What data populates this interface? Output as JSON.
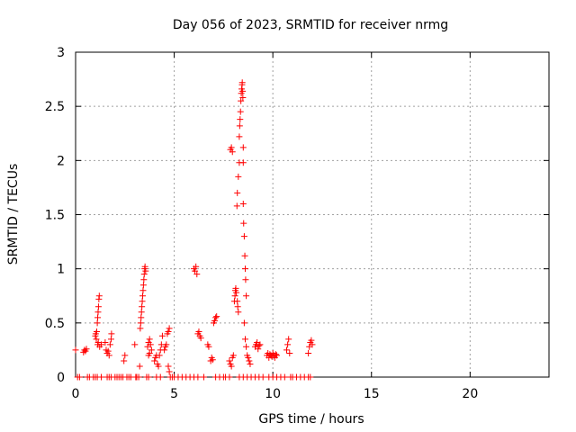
{
  "chart_data": {
    "type": "scatter",
    "title": "Day 056 of 2023, SRMTID for receiver nrmg",
    "xlabel": "GPS time / hours",
    "ylabel": "SRMTID / TECUs",
    "xlim": [
      0,
      24
    ],
    "ylim": [
      0,
      3
    ],
    "xticks": [
      0,
      5,
      10,
      15,
      20
    ],
    "yticks": [
      0,
      0.5,
      1,
      1.5,
      2,
      2.5,
      3
    ],
    "xtick_labels": [
      "0",
      "5",
      "10",
      "15",
      "20"
    ],
    "ytick_labels": [
      "0",
      "0.5",
      "1",
      "1.5",
      "2",
      "2.5",
      "3"
    ],
    "grid": true,
    "marker": "+",
    "color": "#ff0000",
    "series": [
      {
        "name": "SRMTID",
        "points": [
          [
            0.0,
            0.25
          ],
          [
            0.1,
            0.0
          ],
          [
            0.2,
            0.0
          ],
          [
            0.4,
            0.23
          ],
          [
            0.45,
            0.25
          ],
          [
            0.5,
            0.24
          ],
          [
            0.55,
            0.26
          ],
          [
            0.6,
            0.0
          ],
          [
            0.7,
            0.0
          ],
          [
            0.9,
            0.0
          ],
          [
            1.0,
            0.38
          ],
          [
            1.02,
            0.4
          ],
          [
            1.05,
            0.35
          ],
          [
            1.07,
            0.42
          ],
          [
            1.1,
            0.5
          ],
          [
            1.12,
            0.55
          ],
          [
            1.14,
            0.6
          ],
          [
            1.16,
            0.65
          ],
          [
            1.18,
            0.72
          ],
          [
            1.2,
            0.75
          ],
          [
            1.12,
            0.3
          ],
          [
            1.15,
            0.32
          ],
          [
            1.22,
            0.28
          ],
          [
            1.3,
            0.3
          ],
          [
            1.0,
            0.0
          ],
          [
            1.1,
            0.0
          ],
          [
            1.3,
            0.0
          ],
          [
            1.5,
            0.32
          ],
          [
            1.55,
            0.25
          ],
          [
            1.6,
            0.22
          ],
          [
            1.65,
            0.24
          ],
          [
            1.7,
            0.2
          ],
          [
            1.75,
            0.3
          ],
          [
            1.8,
            0.35
          ],
          [
            1.82,
            0.4
          ],
          [
            1.6,
            0.0
          ],
          [
            1.7,
            0.0
          ],
          [
            1.8,
            0.0
          ],
          [
            2.0,
            0.0
          ],
          [
            2.1,
            0.0
          ],
          [
            2.2,
            0.0
          ],
          [
            2.3,
            0.0
          ],
          [
            2.4,
            0.0
          ],
          [
            2.45,
            0.15
          ],
          [
            2.5,
            0.2
          ],
          [
            2.6,
            0.0
          ],
          [
            2.7,
            0.0
          ],
          [
            2.8,
            0.0
          ],
          [
            3.0,
            0.3
          ],
          [
            3.05,
            0.0
          ],
          [
            3.1,
            0.0
          ],
          [
            3.2,
            0.0
          ],
          [
            3.25,
            0.1
          ],
          [
            3.28,
            0.45
          ],
          [
            3.3,
            0.5
          ],
          [
            3.32,
            0.55
          ],
          [
            3.34,
            0.6
          ],
          [
            3.36,
            0.65
          ],
          [
            3.38,
            0.7
          ],
          [
            3.4,
            0.75
          ],
          [
            3.42,
            0.8
          ],
          [
            3.44,
            0.85
          ],
          [
            3.46,
            0.9
          ],
          [
            3.48,
            0.95
          ],
          [
            3.5,
            1.0
          ],
          [
            3.52,
            1.02
          ],
          [
            3.55,
            0.98
          ],
          [
            3.6,
            0.0
          ],
          [
            3.7,
            0.0
          ],
          [
            3.65,
            0.28
          ],
          [
            3.7,
            0.32
          ],
          [
            3.75,
            0.35
          ],
          [
            3.8,
            0.3
          ],
          [
            3.85,
            0.25
          ],
          [
            3.7,
            0.2
          ],
          [
            3.75,
            0.22
          ],
          [
            4.0,
            0.15
          ],
          [
            4.05,
            0.18
          ],
          [
            4.1,
            0.2
          ],
          [
            4.15,
            0.12
          ],
          [
            4.2,
            0.1
          ],
          [
            4.25,
            0.2
          ],
          [
            4.3,
            0.25
          ],
          [
            4.35,
            0.3
          ],
          [
            4.4,
            0.38
          ],
          [
            4.1,
            0.0
          ],
          [
            4.3,
            0.0
          ],
          [
            4.5,
            0.25
          ],
          [
            4.55,
            0.28
          ],
          [
            4.6,
            0.3
          ],
          [
            4.65,
            0.4
          ],
          [
            4.7,
            0.42
          ],
          [
            4.75,
            0.45
          ],
          [
            4.7,
            0.1
          ],
          [
            4.75,
            0.05
          ],
          [
            4.8,
            0.0
          ],
          [
            4.9,
            0.0
          ],
          [
            5.0,
            0.0
          ],
          [
            5.2,
            0.0
          ],
          [
            5.4,
            0.0
          ],
          [
            5.6,
            0.0
          ],
          [
            5.8,
            0.0
          ],
          [
            6.0,
            1.0
          ],
          [
            6.05,
            0.98
          ],
          [
            6.1,
            1.02
          ],
          [
            6.15,
            0.95
          ],
          [
            6.2,
            0.4
          ],
          [
            6.25,
            0.42
          ],
          [
            6.3,
            0.38
          ],
          [
            6.35,
            0.36
          ],
          [
            6.0,
            0.0
          ],
          [
            6.2,
            0.0
          ],
          [
            6.5,
            0.0
          ],
          [
            6.7,
            0.3
          ],
          [
            6.75,
            0.28
          ],
          [
            6.85,
            0.15
          ],
          [
            6.9,
            0.18
          ],
          [
            6.95,
            0.16
          ],
          [
            7.0,
            0.5
          ],
          [
            7.05,
            0.52
          ],
          [
            7.1,
            0.55
          ],
          [
            7.15,
            0.56
          ],
          [
            7.1,
            0.0
          ],
          [
            7.3,
            0.0
          ],
          [
            7.5,
            0.0
          ],
          [
            7.6,
            0.0
          ],
          [
            7.8,
            0.0
          ],
          [
            7.85,
            2.1
          ],
          [
            7.9,
            2.12
          ],
          [
            7.95,
            2.08
          ],
          [
            7.8,
            0.15
          ],
          [
            7.85,
            0.12
          ],
          [
            7.9,
            0.1
          ],
          [
            7.95,
            0.18
          ],
          [
            8.0,
            0.2
          ],
          [
            8.05,
            0.7
          ],
          [
            8.08,
            0.75
          ],
          [
            8.1,
            0.8
          ],
          [
            8.12,
            0.82
          ],
          [
            8.15,
            0.78
          ],
          [
            8.2,
            0.7
          ],
          [
            8.22,
            0.65
          ],
          [
            8.25,
            0.6
          ],
          [
            8.18,
            1.58
          ],
          [
            8.2,
            1.7
          ],
          [
            8.25,
            1.85
          ],
          [
            8.3,
            1.98
          ],
          [
            8.3,
            2.22
          ],
          [
            8.32,
            2.32
          ],
          [
            8.34,
            2.38
          ],
          [
            8.36,
            2.45
          ],
          [
            8.38,
            2.55
          ],
          [
            8.4,
            2.62
          ],
          [
            8.42,
            2.66
          ],
          [
            8.44,
            2.7
          ],
          [
            8.45,
            2.72
          ],
          [
            8.47,
            2.64
          ],
          [
            8.48,
            2.58
          ],
          [
            8.5,
            2.12
          ],
          [
            8.5,
            1.98
          ],
          [
            8.5,
            1.6
          ],
          [
            8.52,
            1.42
          ],
          [
            8.55,
            1.3
          ],
          [
            8.58,
            1.12
          ],
          [
            8.6,
            1.0
          ],
          [
            8.62,
            0.9
          ],
          [
            8.65,
            0.75
          ],
          [
            8.55,
            0.5
          ],
          [
            8.6,
            0.35
          ],
          [
            8.65,
            0.28
          ],
          [
            8.7,
            0.2
          ],
          [
            8.75,
            0.18
          ],
          [
            8.8,
            0.15
          ],
          [
            8.85,
            0.12
          ],
          [
            8.3,
            0.0
          ],
          [
            8.5,
            0.0
          ],
          [
            8.7,
            0.0
          ],
          [
            8.9,
            0.0
          ],
          [
            9.1,
            0.28
          ],
          [
            9.15,
            0.3
          ],
          [
            9.2,
            0.32
          ],
          [
            9.25,
            0.26
          ],
          [
            9.3,
            0.29
          ],
          [
            9.35,
            0.3
          ],
          [
            9.1,
            0.0
          ],
          [
            9.3,
            0.0
          ],
          [
            9.5,
            0.0
          ],
          [
            9.7,
            0.2
          ],
          [
            9.75,
            0.22
          ],
          [
            9.8,
            0.18
          ],
          [
            9.85,
            0.21
          ],
          [
            9.9,
            0.2
          ],
          [
            9.95,
            0.19
          ],
          [
            10.0,
            0.22
          ],
          [
            10.05,
            0.2
          ],
          [
            10.1,
            0.18
          ],
          [
            10.15,
            0.21
          ],
          [
            10.2,
            0.2
          ],
          [
            9.8,
            0.0
          ],
          [
            10.0,
            0.0
          ],
          [
            10.2,
            0.0
          ],
          [
            10.4,
            0.0
          ],
          [
            10.6,
            0.0
          ],
          [
            10.7,
            0.25
          ],
          [
            10.75,
            0.3
          ],
          [
            10.8,
            0.35
          ],
          [
            10.85,
            0.22
          ],
          [
            10.9,
            0.0
          ],
          [
            11.0,
            0.0
          ],
          [
            11.2,
            0.0
          ],
          [
            11.4,
            0.0
          ],
          [
            11.6,
            0.0
          ],
          [
            11.8,
            0.22
          ],
          [
            11.85,
            0.28
          ],
          [
            11.9,
            0.32
          ],
          [
            11.95,
            0.34
          ],
          [
            12.0,
            0.3
          ],
          [
            11.8,
            0.0
          ],
          [
            11.9,
            0.0
          ]
        ]
      }
    ]
  }
}
